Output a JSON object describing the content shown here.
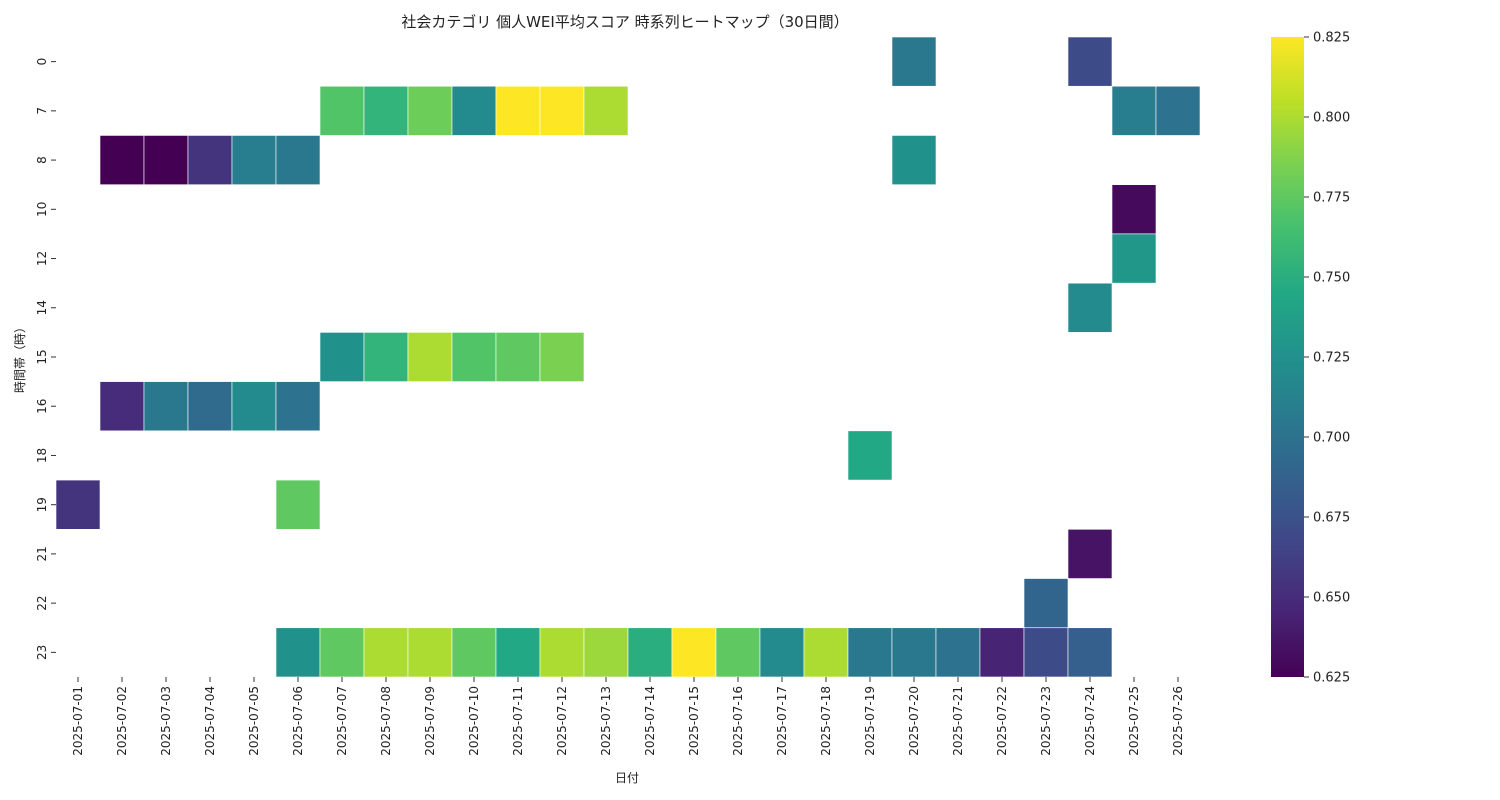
{
  "chart_data": {
    "type": "heatmap",
    "title": "社会カテゴリ 個人WEI平均スコア 時系列ヒートマップ（30日間）",
    "xlabel": "日付",
    "ylabel": "時間帯（時）",
    "x_categories": [
      "2025-07-01",
      "2025-07-02",
      "2025-07-03",
      "2025-07-04",
      "2025-07-05",
      "2025-07-06",
      "2025-07-07",
      "2025-07-08",
      "2025-07-09",
      "2025-07-10",
      "2025-07-11",
      "2025-07-12",
      "2025-07-13",
      "2025-07-14",
      "2025-07-15",
      "2025-07-16",
      "2025-07-17",
      "2025-07-18",
      "2025-07-19",
      "2025-07-20",
      "2025-07-21",
      "2025-07-22",
      "2025-07-23",
      "2025-07-24",
      "2025-07-25",
      "2025-07-26"
    ],
    "y_categories": [
      "0",
      "7",
      "8",
      "10",
      "12",
      "14",
      "15",
      "16",
      "18",
      "19",
      "21",
      "22",
      "23"
    ],
    "colormap": "viridis",
    "colorbar": {
      "min": 0.625,
      "max": 0.825,
      "ticks": [
        "0.625",
        "0.650",
        "0.675",
        "0.700",
        "0.725",
        "0.750",
        "0.775",
        "0.800",
        "0.825"
      ]
    },
    "cells": [
      {
        "x": "2025-07-20",
        "y": "0",
        "value": 0.705
      },
      {
        "x": "2025-07-24",
        "y": "0",
        "value": 0.67
      },
      {
        "x": "2025-07-07",
        "y": "7",
        "value": 0.77
      },
      {
        "x": "2025-07-08",
        "y": "7",
        "value": 0.755
      },
      {
        "x": "2025-07-09",
        "y": "7",
        "value": 0.78
      },
      {
        "x": "2025-07-10",
        "y": "7",
        "value": 0.72
      },
      {
        "x": "2025-07-11",
        "y": "7",
        "value": 0.825
      },
      {
        "x": "2025-07-12",
        "y": "7",
        "value": 0.825
      },
      {
        "x": "2025-07-13",
        "y": "7",
        "value": 0.8
      },
      {
        "x": "2025-07-25",
        "y": "7",
        "value": 0.71
      },
      {
        "x": "2025-07-26",
        "y": "7",
        "value": 0.7
      },
      {
        "x": "2025-07-02",
        "y": "8",
        "value": 0.625
      },
      {
        "x": "2025-07-03",
        "y": "8",
        "value": 0.625
      },
      {
        "x": "2025-07-04",
        "y": "8",
        "value": 0.655
      },
      {
        "x": "2025-07-05",
        "y": "8",
        "value": 0.71
      },
      {
        "x": "2025-07-06",
        "y": "8",
        "value": 0.705
      },
      {
        "x": "2025-07-20",
        "y": "8",
        "value": 0.725
      },
      {
        "x": "2025-07-25",
        "y": "10",
        "value": 0.63
      },
      {
        "x": "2025-07-25",
        "y": "12",
        "value": 0.73
      },
      {
        "x": "2025-07-24",
        "y": "14",
        "value": 0.72
      },
      {
        "x": "2025-07-07",
        "y": "15",
        "value": 0.725
      },
      {
        "x": "2025-07-08",
        "y": "15",
        "value": 0.755
      },
      {
        "x": "2025-07-09",
        "y": "15",
        "value": 0.8
      },
      {
        "x": "2025-07-10",
        "y": "15",
        "value": 0.77
      },
      {
        "x": "2025-07-11",
        "y": "15",
        "value": 0.775
      },
      {
        "x": "2025-07-12",
        "y": "15",
        "value": 0.785
      },
      {
        "x": "2025-07-02",
        "y": "16",
        "value": 0.65
      },
      {
        "x": "2025-07-03",
        "y": "16",
        "value": 0.705
      },
      {
        "x": "2025-07-04",
        "y": "16",
        "value": 0.695
      },
      {
        "x": "2025-07-05",
        "y": "16",
        "value": 0.72
      },
      {
        "x": "2025-07-06",
        "y": "16",
        "value": 0.7
      },
      {
        "x": "2025-07-19",
        "y": "18",
        "value": 0.745
      },
      {
        "x": "2025-07-01",
        "y": "19",
        "value": 0.655
      },
      {
        "x": "2025-07-06",
        "y": "19",
        "value": 0.775
      },
      {
        "x": "2025-07-24",
        "y": "21",
        "value": 0.635
      },
      {
        "x": "2025-07-23",
        "y": "22",
        "value": 0.69
      },
      {
        "x": "2025-07-06",
        "y": "23",
        "value": 0.725
      },
      {
        "x": "2025-07-07",
        "y": "23",
        "value": 0.775
      },
      {
        "x": "2025-07-08",
        "y": "23",
        "value": 0.8
      },
      {
        "x": "2025-07-09",
        "y": "23",
        "value": 0.8
      },
      {
        "x": "2025-07-10",
        "y": "23",
        "value": 0.775
      },
      {
        "x": "2025-07-11",
        "y": "23",
        "value": 0.745
      },
      {
        "x": "2025-07-12",
        "y": "23",
        "value": 0.8
      },
      {
        "x": "2025-07-13",
        "y": "23",
        "value": 0.795
      },
      {
        "x": "2025-07-14",
        "y": "23",
        "value": 0.75
      },
      {
        "x": "2025-07-15",
        "y": "23",
        "value": 0.825
      },
      {
        "x": "2025-07-16",
        "y": "23",
        "value": 0.775
      },
      {
        "x": "2025-07-17",
        "y": "23",
        "value": 0.72
      },
      {
        "x": "2025-07-18",
        "y": "23",
        "value": 0.8
      },
      {
        "x": "2025-07-19",
        "y": "23",
        "value": 0.705
      },
      {
        "x": "2025-07-20",
        "y": "23",
        "value": 0.705
      },
      {
        "x": "2025-07-21",
        "y": "23",
        "value": 0.7
      },
      {
        "x": "2025-07-22",
        "y": "23",
        "value": 0.645
      },
      {
        "x": "2025-07-23",
        "y": "23",
        "value": 0.67
      },
      {
        "x": "2025-07-24",
        "y": "23",
        "value": 0.685
      }
    ]
  }
}
